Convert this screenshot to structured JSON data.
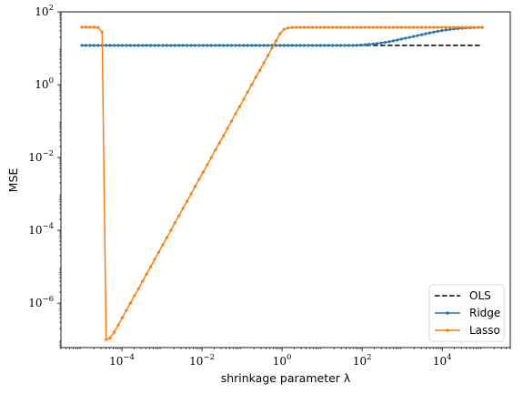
{
  "chart_data": {
    "type": "line",
    "xlabel": "shrinkage parameter λ",
    "ylabel": "MSE",
    "xscale": "log",
    "yscale": "log",
    "xlim": [
      3e-06,
      500000.0
    ],
    "ylim": [
      6e-08,
      100
    ],
    "xticks": [
      {
        "base": "10",
        "exp": "−4",
        "value": 0.0001
      },
      {
        "base": "10",
        "exp": "−2",
        "value": 0.01
      },
      {
        "base": "10",
        "exp": "0",
        "value": 1
      },
      {
        "base": "10",
        "exp": "2",
        "value": 100
      },
      {
        "base": "10",
        "exp": "4",
        "value": 10000
      }
    ],
    "yticks": [
      {
        "base": "10",
        "exp": "−6",
        "value": 1e-06
      },
      {
        "base": "10",
        "exp": "−4",
        "value": 0.0001
      },
      {
        "base": "10",
        "exp": "−2",
        "value": 0.01
      },
      {
        "base": "10",
        "exp": "0",
        "value": 1
      },
      {
        "base": "10",
        "exp": "2",
        "value": 100
      }
    ],
    "grid": false,
    "legend": {
      "position": "bottom-right",
      "entries": [
        {
          "label": "OLS",
          "color": "#000000",
          "style": "dashed",
          "marker": false
        },
        {
          "label": "Ridge",
          "color": "#1f77b4",
          "style": "solid",
          "marker": true
        },
        {
          "label": "Lasso",
          "color": "#ff7f0e",
          "style": "solid",
          "marker": true
        }
      ]
    },
    "series": [
      {
        "name": "OLS",
        "color": "#000000",
        "style": "dashed",
        "x": [
          1e-05,
          100000
        ],
        "y": [
          12,
          12
        ]
      },
      {
        "name": "Ridge",
        "color": "#1f77b4",
        "style": "solid",
        "x_log10_range": [
          -5,
          5
        ],
        "points": 100,
        "y": [
          12,
          12,
          12,
          12,
          12,
          12,
          12,
          12,
          12,
          12,
          12,
          12,
          12,
          12,
          12,
          12,
          12,
          12,
          12,
          12,
          12,
          12,
          12,
          12,
          12,
          12,
          12,
          12,
          12,
          12,
          12,
          12,
          12,
          12,
          12,
          12,
          12,
          12,
          12,
          12,
          12,
          12,
          12,
          12,
          12,
          12,
          12,
          12,
          12,
          12,
          12,
          12,
          12,
          12,
          12,
          12,
          12,
          12,
          12,
          12,
          12,
          12,
          12,
          12,
          12,
          12,
          12,
          12,
          12.1,
          12.3,
          12.5,
          12.8,
          13.1,
          13.5,
          14,
          14.5,
          15.2,
          16,
          16.8,
          17.8,
          18.8,
          19.9,
          21,
          22.3,
          23.6,
          25,
          26.4,
          27.8,
          29.2,
          30.5,
          31.8,
          32.9,
          33.9,
          34.8,
          35.5,
          36.1,
          36.6,
          37,
          37.2,
          37.4
        ]
      },
      {
        "name": "Lasso",
        "color": "#ff7f0e",
        "style": "solid",
        "x_log10_range": [
          -5,
          5
        ],
        "points": 100,
        "y": [
          38,
          38,
          38,
          38,
          37,
          28,
          1e-07,
          1.1e-07,
          1.6e-07,
          2.5e-07,
          4e-07,
          6.3e-07,
          1e-06,
          1.6e-06,
          2.5e-06,
          4e-06,
          6.3e-06,
          1e-05,
          1.6e-05,
          2.5e-05,
          4e-05,
          6.3e-05,
          0.0001,
          0.00016,
          0.00025,
          0.0004,
          0.00063,
          0.001,
          0.0016,
          0.0025,
          0.004,
          0.0063,
          0.01,
          0.016,
          0.025,
          0.04,
          0.063,
          0.1,
          0.16,
          0.25,
          0.4,
          0.63,
          1,
          1.6,
          2.5,
          4,
          6.3,
          10,
          16,
          25,
          33,
          36,
          37,
          37.5,
          37.5,
          37.5,
          37.5,
          37.5,
          37.5,
          37.5,
          37.5,
          37.5,
          37.5,
          37.5,
          37.5,
          37.5,
          37.5,
          37.5,
          37.5,
          37.5,
          37.5,
          37.5,
          37.5,
          37.5,
          37.5,
          37.5,
          37.5,
          37.5,
          37.5,
          37.5,
          37.5,
          37.5,
          37.5,
          37.5,
          37.5,
          37.5,
          37.5,
          37.5,
          37.5,
          37.5,
          37.5,
          37.5,
          37.5,
          37.5,
          37.5,
          37.5,
          37.5,
          37.5,
          37.5,
          37.5
        ]
      }
    ]
  }
}
